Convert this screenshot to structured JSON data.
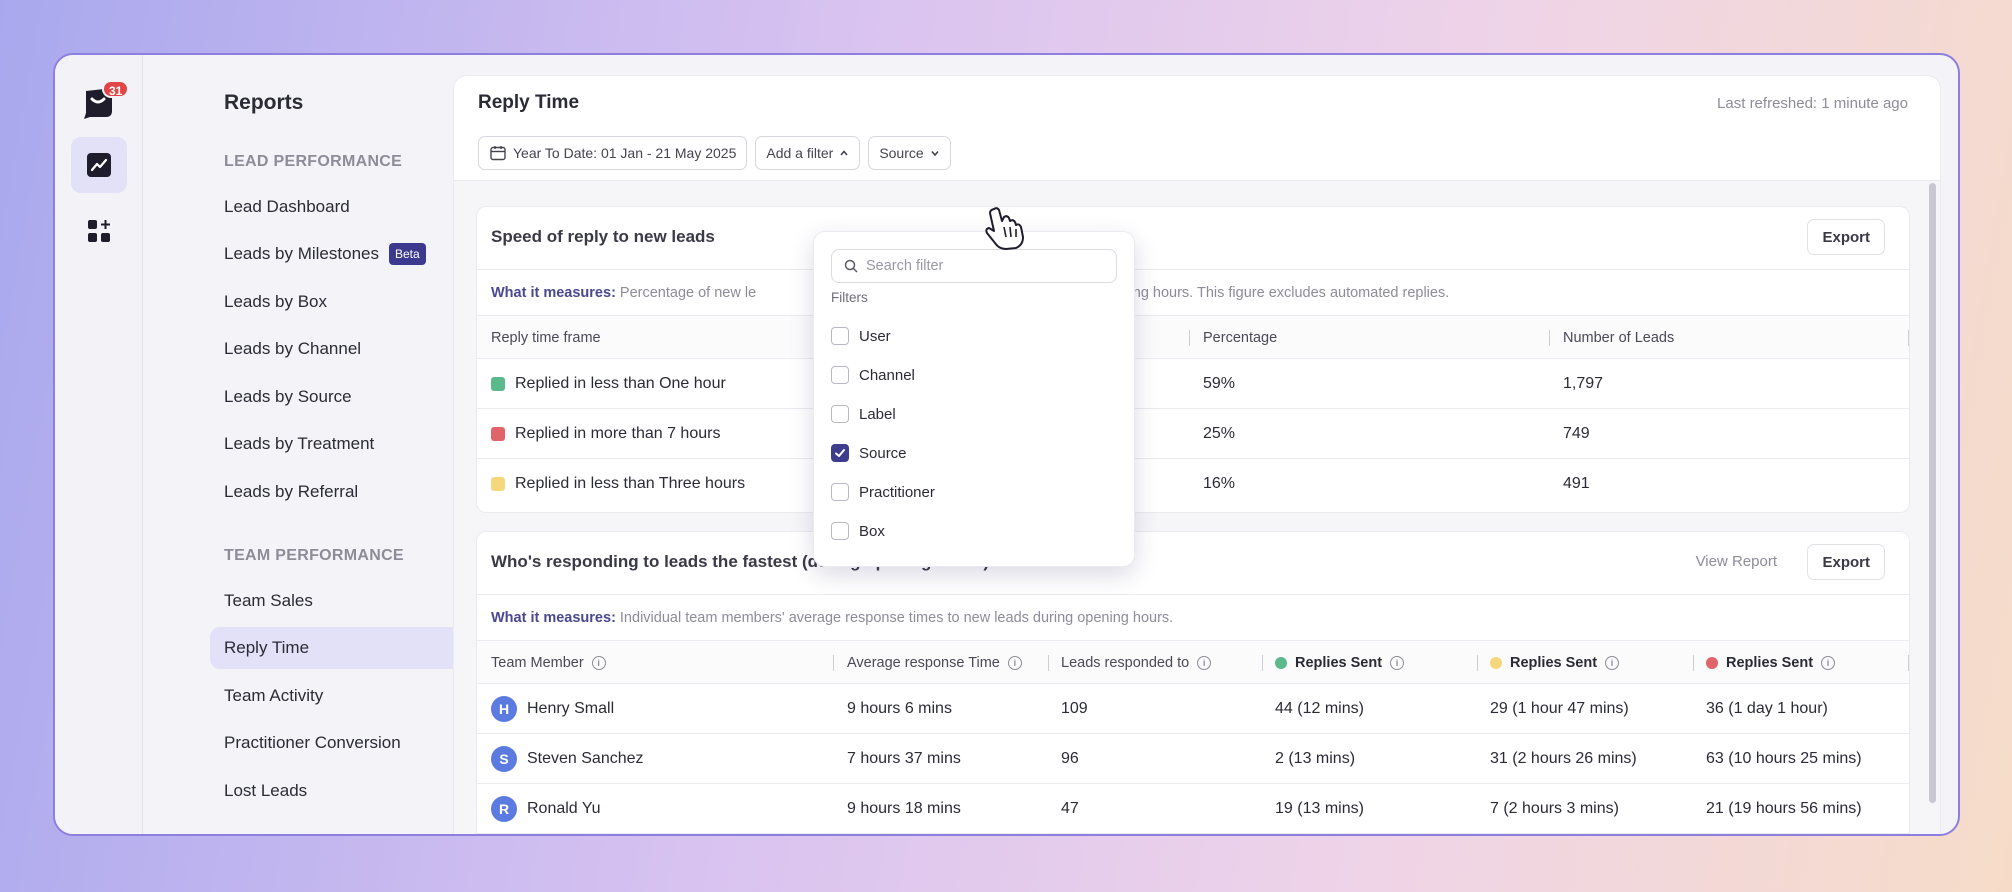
{
  "rail": {
    "notification_count": "31"
  },
  "subnav": {
    "title": "Reports",
    "sections": [
      {
        "label": "LEAD PERFORMANCE",
        "items": [
          "Lead Dashboard",
          "Leads by Milestones",
          "Leads by Box",
          "Leads by Channel",
          "Leads by Source",
          "Leads by Treatment",
          "Leads by Referral"
        ]
      },
      {
        "label": "TEAM PERFORMANCE",
        "items": [
          "Team Sales",
          "Reply Time",
          "Team Activity",
          "Practitioner Conversion",
          "Lost Leads"
        ]
      }
    ],
    "beta_badge": "Beta",
    "active_item": "Reply Time"
  },
  "main": {
    "title": "Reply Time",
    "last_refreshed": "Last refreshed: 1 minute ago",
    "date_filter": "Year To Date: 01 Jan - 21 May 2025",
    "add_filter": "Add a filter",
    "source_filter": "Source"
  },
  "speed_card": {
    "title": "Speed of reply to new leads",
    "export": "Export",
    "measures_label": "What it measures:",
    "measures_text_left": "Percentage of new le",
    "measures_text_right": "uring opening hours. This figure excludes automated replies.",
    "headers": [
      "Reply time frame",
      "Percentage",
      "Number of Leads"
    ],
    "rows": [
      {
        "label": "Replied in less than One hour",
        "color": "#5bb98c",
        "percentage": "59%",
        "leads": "1,797"
      },
      {
        "label": "Replied in more than 7 hours",
        "color": "#e0646a",
        "percentage": "25%",
        "leads": "749"
      },
      {
        "label": "Replied in less than Three hours",
        "color": "#f5d77e",
        "percentage": "16%",
        "leads": "491"
      }
    ]
  },
  "fastest_card": {
    "title": "Who's responding to leads the fastest (during opening hours)",
    "view_report": "View Report",
    "export": "Export",
    "measures_label": "What it measures:",
    "measures_text": "Individual team members' average response times to new leads during opening hours.",
    "headers": [
      "Team Member",
      "Average response Time",
      "Leads responded to",
      "Replies Sent",
      "Replies Sent",
      "Replies Sent"
    ],
    "header_dot_colors": [
      "#5bb98c",
      "#f5d77e",
      "#e0646a"
    ],
    "rows": [
      {
        "initial": "H",
        "name": "Henry Small",
        "avg": "9 hours 6 mins",
        "leads": "109",
        "r1": "44 (12 mins)",
        "r2": "29 (1 hour 47 mins)",
        "r3": "36 (1 day 1 hour)"
      },
      {
        "initial": "S",
        "name": "Steven Sanchez",
        "avg": "7 hours 37 mins",
        "leads": "96",
        "r1": "2 (13 mins)",
        "r2": "31 (2 hours 26 mins)",
        "r3": "63 (10 hours 25 mins)"
      },
      {
        "initial": "R",
        "name": "Ronald Yu",
        "avg": "9 hours 18 mins",
        "leads": "47",
        "r1": "19 (13 mins)",
        "r2": "7 (2 hours 3 mins)",
        "r3": "21 (19 hours 56 mins)"
      }
    ]
  },
  "filter_dropdown": {
    "search_placeholder": "Search filter",
    "section_label": "Filters",
    "options": [
      {
        "label": "User",
        "checked": false
      },
      {
        "label": "Channel",
        "checked": false
      },
      {
        "label": "Label",
        "checked": false
      },
      {
        "label": "Source",
        "checked": true
      },
      {
        "label": "Practitioner",
        "checked": false
      },
      {
        "label": "Box",
        "checked": false
      }
    ]
  },
  "colors": {
    "accent": "#3f3d8e",
    "active_nav": "#e3e1f7",
    "badge": "#e14545"
  }
}
